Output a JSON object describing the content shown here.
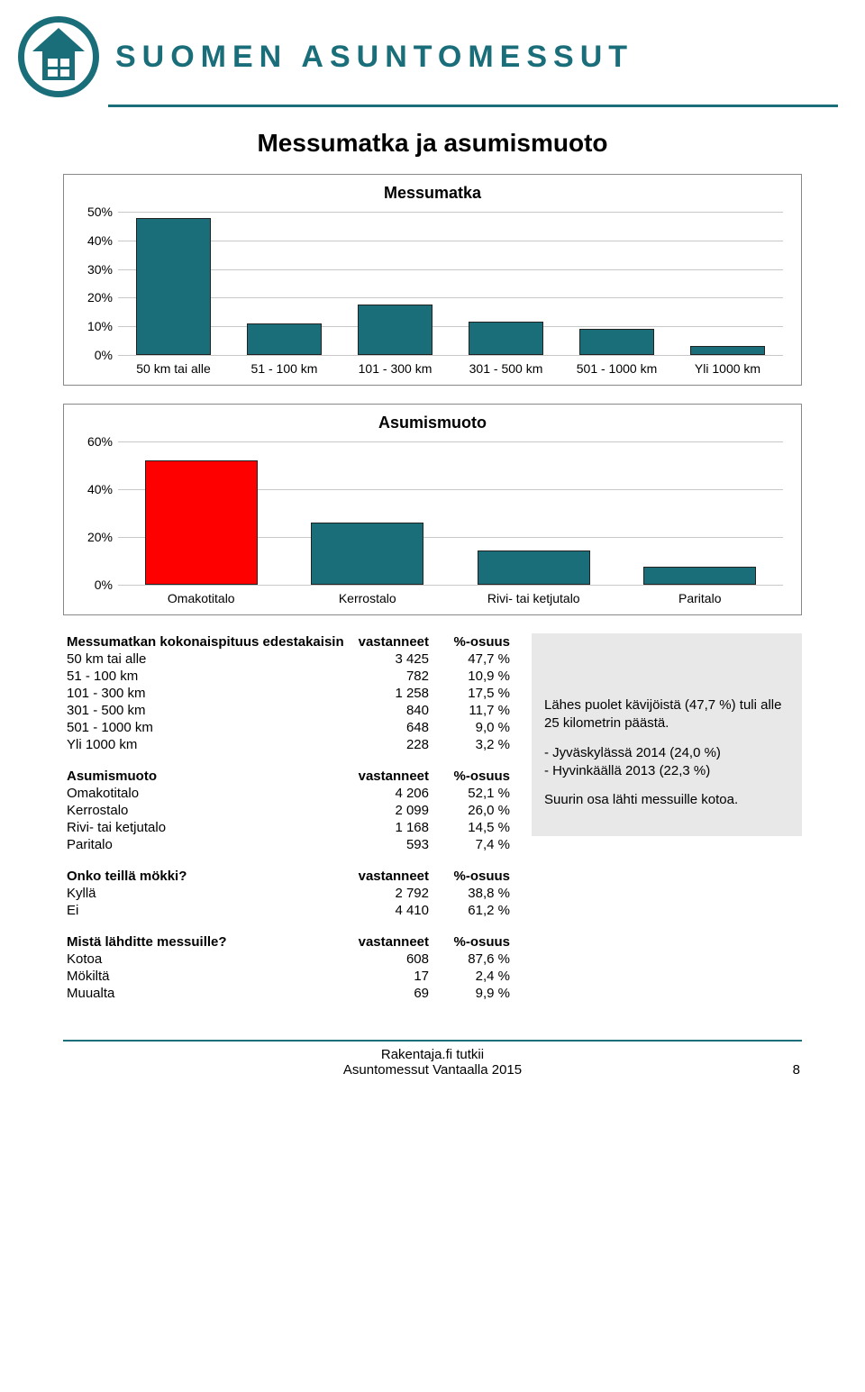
{
  "brand": {
    "name": "SUOMEN ASUNTOMESSUT"
  },
  "page_title": "Messumatka ja asumismuoto",
  "chart1": {
    "title": "Messumatka",
    "ymax": 50,
    "ytick_step": 10,
    "bar_color": "#1a6e7a",
    "grid_color": "#c8c8c8",
    "categories": [
      "50 km tai alle",
      "51 - 100 km",
      "101 - 300 km",
      "301 - 500 km",
      "501 - 1000 km",
      "Yli 1000 km"
    ],
    "values": [
      47.7,
      10.9,
      17.5,
      11.7,
      9.0,
      3.2
    ]
  },
  "chart2": {
    "title": "Asumismuoto",
    "ymax": 60,
    "ytick_step": 20,
    "bar_colors": [
      "#ff0000",
      "#1a6e7a",
      "#1a6e7a",
      "#1a6e7a"
    ],
    "grid_color": "#c8c8c8",
    "categories": [
      "Omakotitalo",
      "Kerrostalo",
      "Rivi- tai ketjutalo",
      "Paritalo"
    ],
    "values": [
      52.1,
      26.0,
      14.5,
      7.4
    ]
  },
  "table1": {
    "header": "Messumatkan kokonaispituus edestakaisin",
    "col_v": "vastanneet",
    "col_p": "%-osuus",
    "rows": [
      [
        "50 km tai alle",
        "3 425",
        "47,7 %"
      ],
      [
        "51 - 100 km",
        "782",
        "10,9 %"
      ],
      [
        "101 - 300 km",
        "1 258",
        "17,5 %"
      ],
      [
        "301 - 500 km",
        "840",
        "11,7 %"
      ],
      [
        "501 - 1000 km",
        "648",
        "9,0 %"
      ],
      [
        "Yli 1000 km",
        "228",
        "3,2 %"
      ]
    ]
  },
  "table2": {
    "header": "Asumismuoto",
    "col_v": "vastanneet",
    "col_p": "%-osuus",
    "rows": [
      [
        "Omakotitalo",
        "4 206",
        "52,1 %"
      ],
      [
        "Kerrostalo",
        "2 099",
        "26,0 %"
      ],
      [
        "Rivi- tai ketjutalo",
        "1 168",
        "14,5 %"
      ],
      [
        "Paritalo",
        "593",
        "7,4 %"
      ]
    ]
  },
  "table3": {
    "header": "Onko teillä mökki?",
    "col_v": "vastanneet",
    "col_p": "%-osuus",
    "rows": [
      [
        "Kyllä",
        "2 792",
        "38,8 %"
      ],
      [
        "Ei",
        "4 410",
        "61,2 %"
      ]
    ]
  },
  "table4": {
    "header": "Mistä lähditte messuille?",
    "col_v": "vastanneet",
    "col_p": "%-osuus",
    "rows": [
      [
        "Kotoa",
        "608",
        "87,6 %"
      ],
      [
        "Mökiltä",
        "17",
        "2,4 %"
      ],
      [
        "Muualta",
        "69",
        "9,9 %"
      ]
    ]
  },
  "callout": {
    "p1": "Lähes puolet kävijöistä (47,7 %) tuli alle 25 kilometrin päästä.",
    "p2a": "- Jyväskylässä 2014 (24,0 %)",
    "p2b": "- Hyvinkäällä 2013 (22,3 %)",
    "p3": "Suurin osa lähti messuille kotoa."
  },
  "footer": {
    "line1": "Rakentaja.fi tutkii",
    "line2": "Asuntomessut Vantaalla 2015",
    "page": "8"
  }
}
